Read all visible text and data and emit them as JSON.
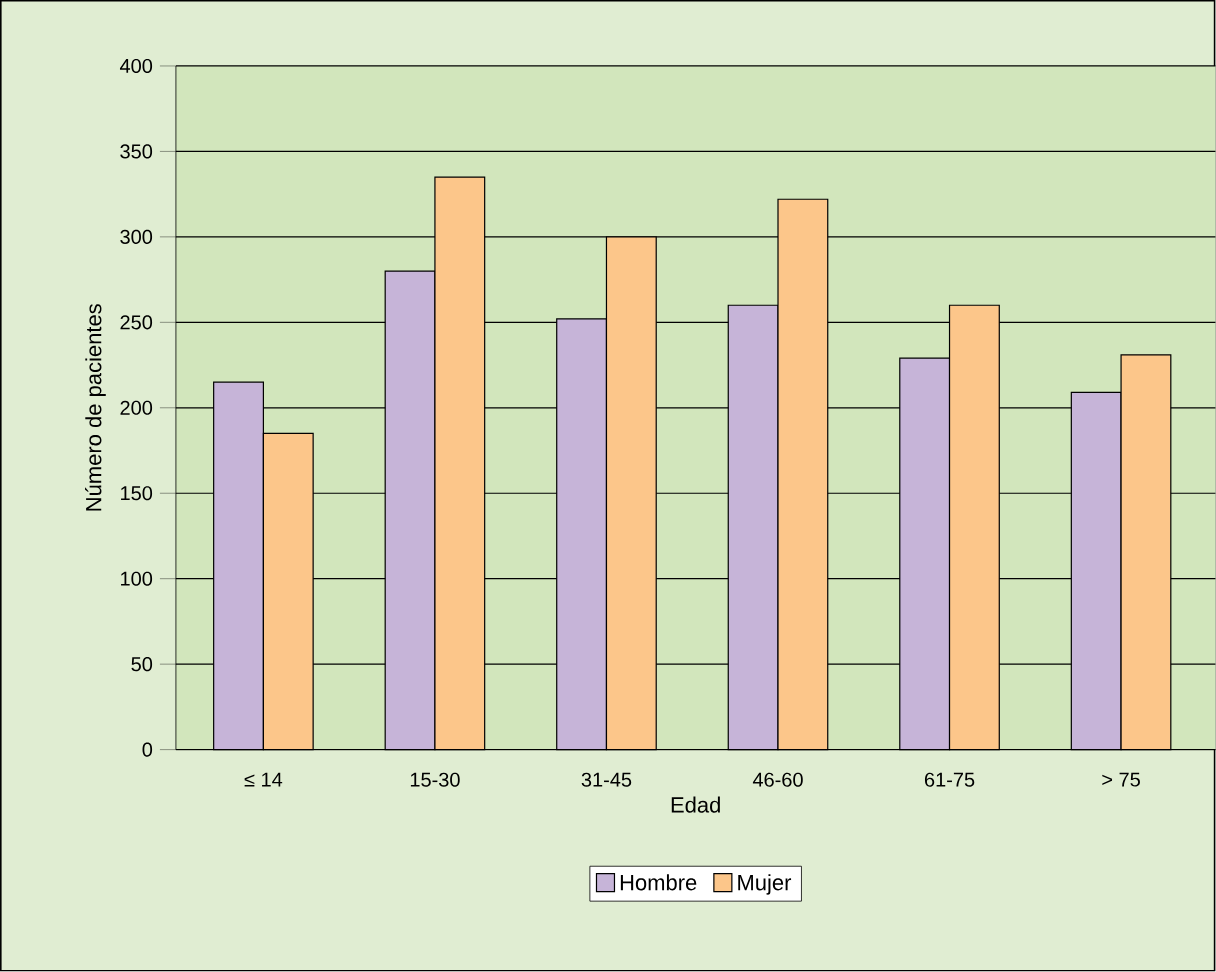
{
  "chart_data": {
    "type": "bar",
    "xlabel": "Edad",
    "ylabel": "Número de pacientes",
    "categories": [
      "≤ 14",
      "15-30",
      "31-45",
      "46-60",
      "61-75",
      "> 75"
    ],
    "series": [
      {
        "name": "Hombre",
        "color": "#c6b4d8",
        "values": [
          215,
          280,
          252,
          260,
          229,
          209
        ]
      },
      {
        "name": "Mujer",
        "color": "#fcc68a",
        "values": [
          185,
          335,
          300,
          322,
          260,
          231
        ]
      }
    ],
    "ylim": [
      0,
      400
    ],
    "yticks": [
      0,
      50,
      100,
      150,
      200,
      250,
      300,
      350,
      400
    ],
    "grid": "y",
    "legend": "bottom"
  }
}
